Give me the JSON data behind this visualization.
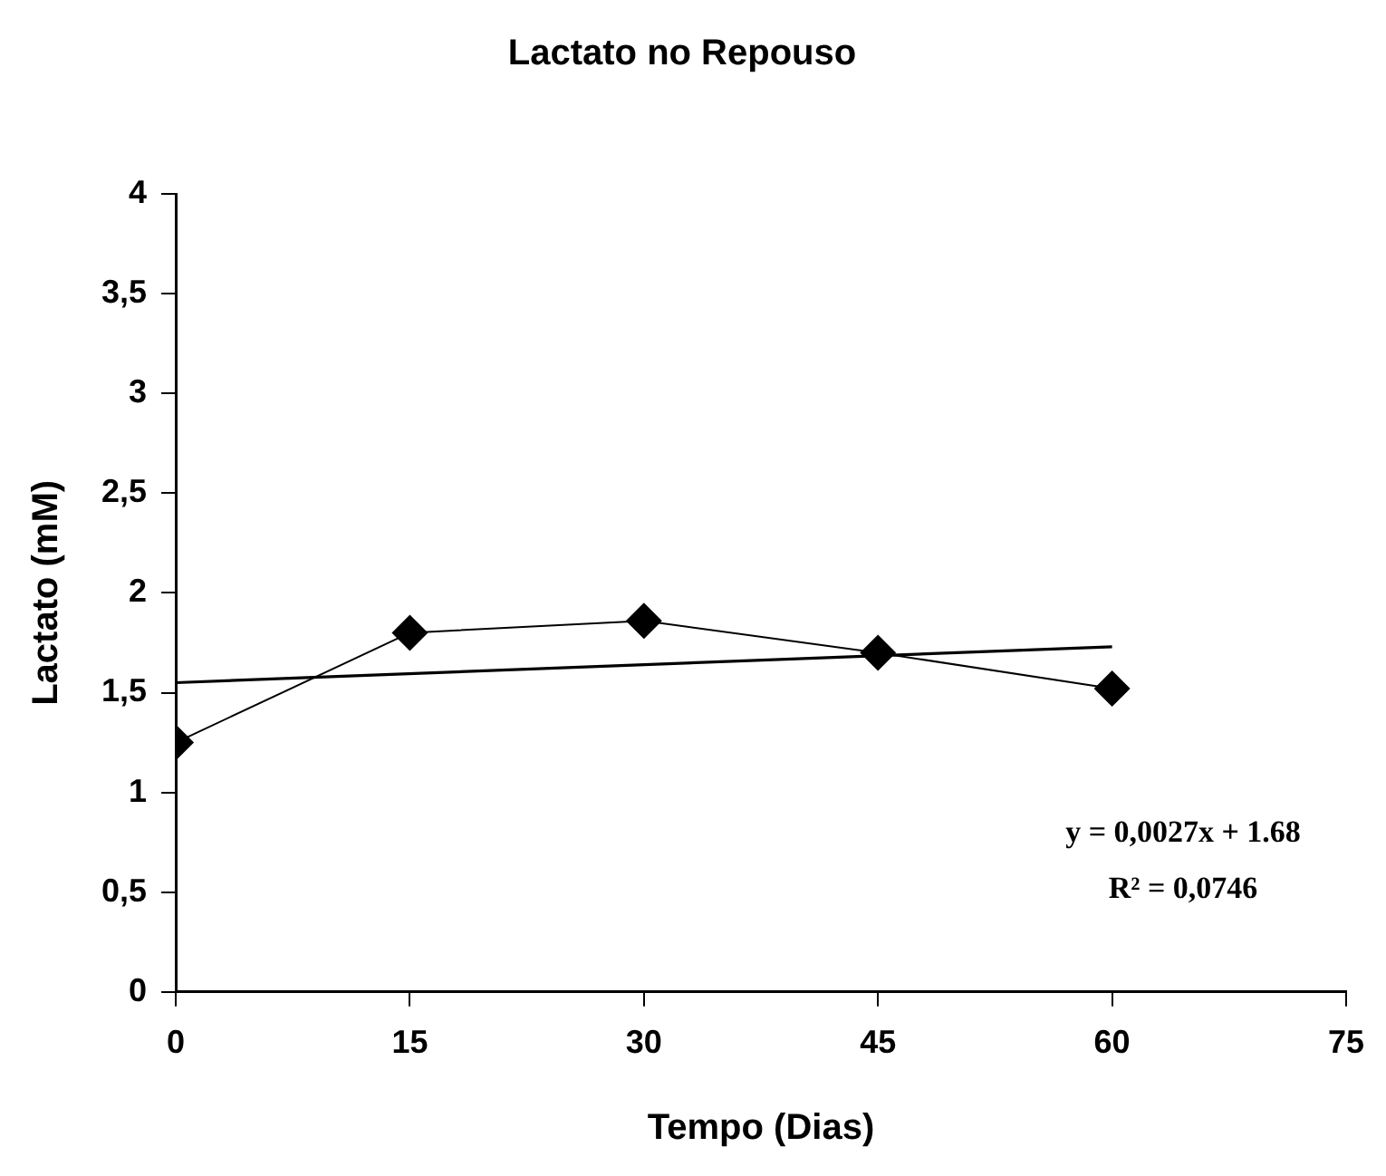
{
  "chart_data": {
    "type": "line",
    "title": "Lactato no Repouso",
    "xlabel": "Tempo (Dias)",
    "ylabel": "Lactato (mM)",
    "xlim": [
      0,
      75
    ],
    "xticks": [
      0,
      15,
      30,
      45,
      60,
      75
    ],
    "ylim": [
      0,
      4
    ],
    "yticks": [
      0,
      {
        "value": 0.5,
        "label": "0,5"
      },
      1,
      {
        "value": 1.5,
        "label": "1,5"
      },
      2,
      {
        "value": 2.5,
        "label": "2,5"
      },
      3,
      {
        "value": 3.5,
        "label": "3,5"
      },
      4
    ],
    "grid": false,
    "legend": false,
    "series": [
      {
        "color": "#000000",
        "x": [
          0,
          15,
          30,
          45,
          60
        ],
        "values": [
          1.25,
          1.8,
          1.86,
          1.7,
          1.52
        ],
        "marker": "diamond"
      },
      {
        "type": "line",
        "color": "#000000",
        "x": [
          0,
          60
        ],
        "values": [
          1.55,
          1.73
        ],
        "marker": "none"
      }
    ],
    "annotations": [
      "y = 0,0027x + 1.68",
      "R² = 0,0746"
    ]
  }
}
